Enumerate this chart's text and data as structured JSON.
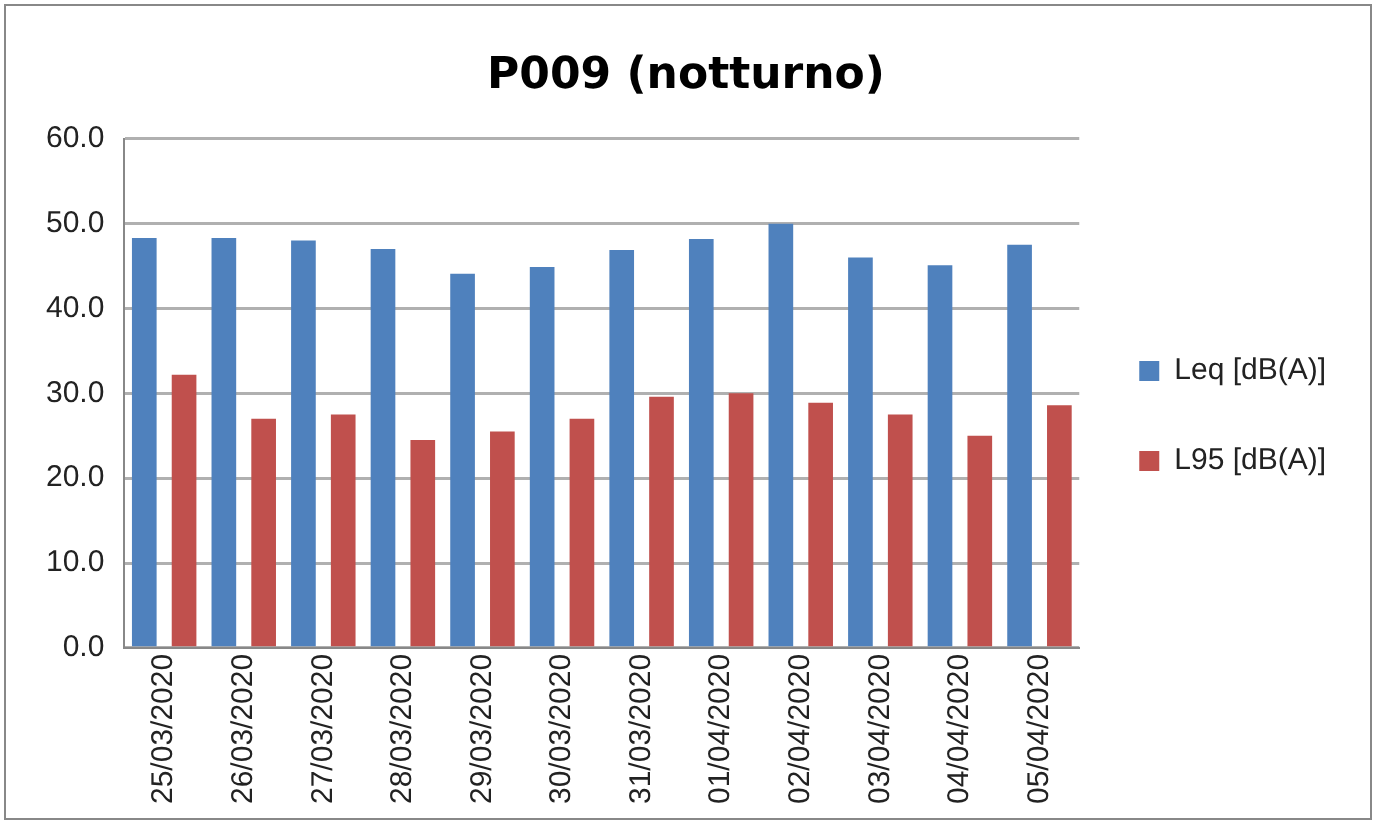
{
  "chart_data": {
    "type": "bar",
    "title": "P009 (notturno)",
    "categories": [
      "25/03/2020",
      "26/03/2020",
      "27/03/2020",
      "28/03/2020",
      "29/03/2020",
      "30/03/2020",
      "31/03/2020",
      "01/04/2020",
      "02/04/2020",
      "03/04/2020",
      "04/04/2020",
      "05/04/2020"
    ],
    "series": [
      {
        "name": "Leq [dB(A)]",
        "color": "#4f81bd",
        "values": [
          48.3,
          48.3,
          48.0,
          47.0,
          44.1,
          44.9,
          46.9,
          48.2,
          50.0,
          46.0,
          45.1,
          47.5
        ]
      },
      {
        "name": "L95 [dB(A)]",
        "color": "#c0504d",
        "values": [
          32.2,
          27.0,
          27.5,
          24.5,
          25.5,
          27.0,
          29.6,
          30.0,
          28.9,
          27.5,
          25.0,
          28.6
        ]
      }
    ],
    "ylim": [
      0,
      60
    ],
    "yticks": [
      {
        "value": 0,
        "label": "0.0"
      },
      {
        "value": 10,
        "label": "10.0"
      },
      {
        "value": 20,
        "label": "20.0"
      },
      {
        "value": 30,
        "label": "30.0"
      },
      {
        "value": 40,
        "label": "40.0"
      },
      {
        "value": 50,
        "label": "50.0"
      },
      {
        "value": 60,
        "label": "60.0"
      }
    ],
    "grid": "y",
    "legend": "right"
  }
}
